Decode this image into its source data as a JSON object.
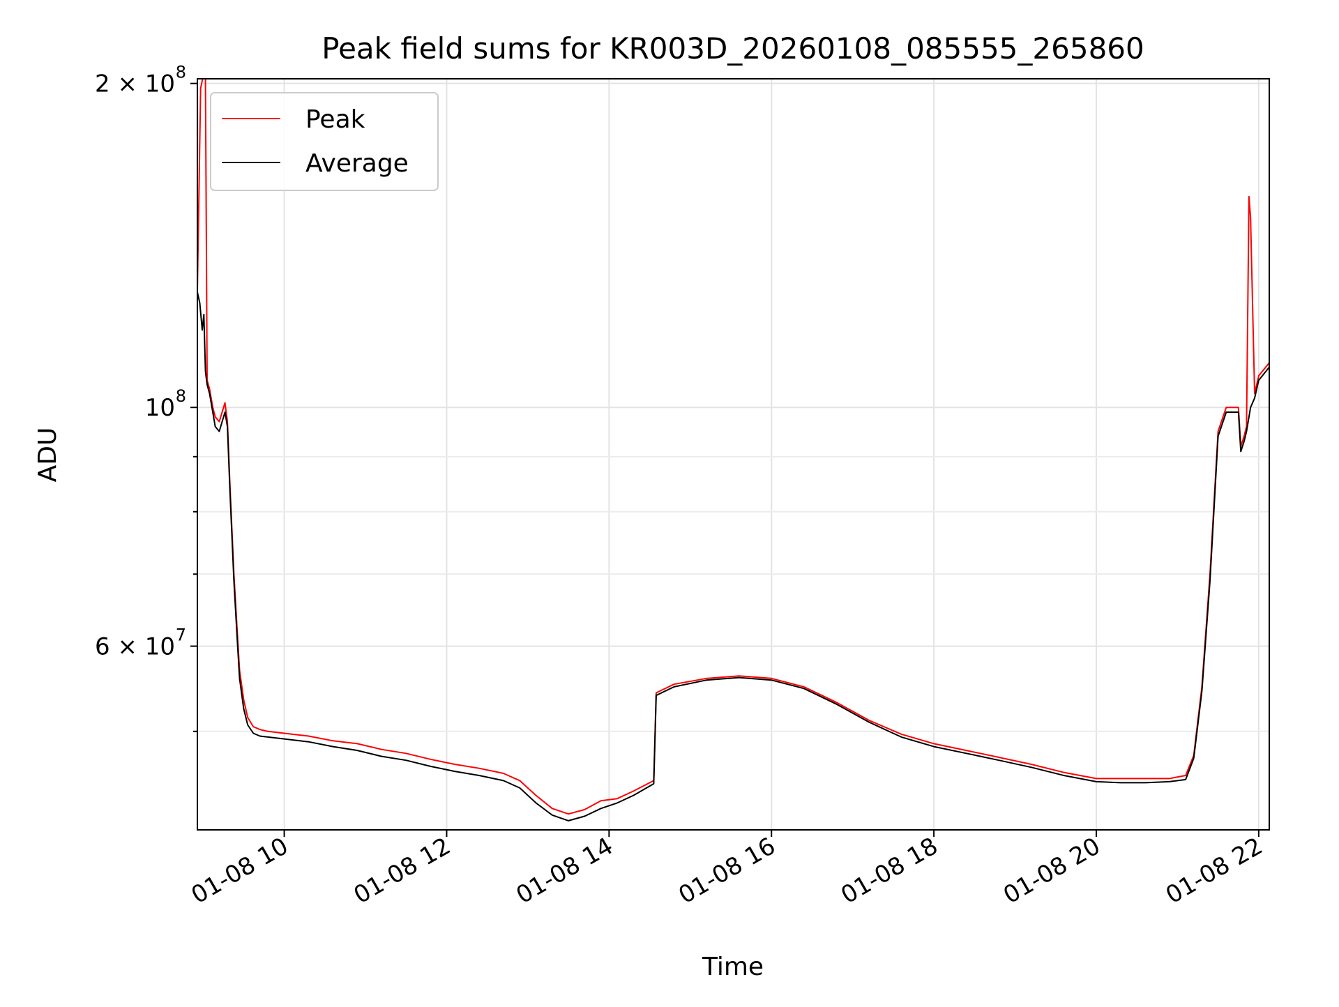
{
  "chart_data": {
    "type": "line",
    "title": "Peak field sums for KR003D_20260108_085555_265860",
    "xlabel": "Time",
    "ylabel": "ADU",
    "yscale": "log",
    "xlim": [
      8.93,
      22.13
    ],
    "ylim": [
      40500000,
      202000000
    ],
    "grid": true,
    "legend_position": "top-left",
    "x_ticks": [
      {
        "value": 10,
        "label": "01-08 10"
      },
      {
        "value": 12,
        "label": "01-08 12"
      },
      {
        "value": 14,
        "label": "01-08 14"
      },
      {
        "value": 16,
        "label": "01-08 16"
      },
      {
        "value": 18,
        "label": "01-08 18"
      },
      {
        "value": 20,
        "label": "01-08 20"
      },
      {
        "value": 22,
        "label": "01-08 22"
      }
    ],
    "y_ticks": [
      {
        "value": 200000000,
        "base": "2 × 10",
        "exp": "8"
      },
      {
        "value": 100000000,
        "base": "10",
        "exp": "8"
      },
      {
        "value": 60000000,
        "base": "6 × 10",
        "exp": "7"
      }
    ],
    "y_minor_ticks": [
      50000000,
      70000000,
      80000000,
      90000000
    ],
    "x_unit": "hour of day (2026-01-08)",
    "y_unit": "ADU",
    "series": [
      {
        "name": "Peak",
        "color": "#ff0000",
        "x": [
          8.93,
          8.97,
          9.0,
          9.03,
          9.05,
          9.08,
          9.1,
          9.12,
          9.15,
          9.2,
          9.27,
          9.3,
          9.33,
          9.38,
          9.42,
          9.45,
          9.5,
          9.55,
          9.62,
          9.7,
          9.8,
          10.0,
          10.3,
          10.6,
          10.9,
          11.2,
          11.5,
          11.8,
          12.1,
          12.4,
          12.7,
          12.9,
          13.1,
          13.3,
          13.5,
          13.7,
          13.9,
          14.1,
          14.3,
          14.55,
          14.58,
          14.8,
          15.2,
          15.6,
          16.0,
          16.4,
          16.8,
          17.2,
          17.6,
          18.0,
          18.4,
          18.8,
          19.2,
          19.6,
          20.0,
          20.3,
          20.6,
          20.9,
          21.1,
          21.2,
          21.3,
          21.4,
          21.5,
          21.6,
          21.65,
          21.75,
          21.78,
          21.82,
          21.85,
          21.88,
          21.9,
          21.95,
          22.0,
          22.13
        ],
        "y": [
          128000000,
          198000000,
          203000000,
          202000000,
          106000000,
          104000000,
          102000000,
          100000000,
          98000000,
          97000000,
          101000000,
          97000000,
          85000000,
          70000000,
          62000000,
          57000000,
          53500000,
          51500000,
          50500000,
          50200000,
          50000000,
          49800000,
          49500000,
          49000000,
          48700000,
          48100000,
          47700000,
          47100000,
          46600000,
          46200000,
          45700000,
          45000000,
          43600000,
          42400000,
          41900000,
          42300000,
          43100000,
          43300000,
          44000000,
          45000000,
          54300000,
          55300000,
          56000000,
          56300000,
          56000000,
          55000000,
          53200000,
          51200000,
          49700000,
          48700000,
          48000000,
          47300000,
          46600000,
          45800000,
          45200000,
          45200000,
          45200000,
          45200000,
          45500000,
          47500000,
          55000000,
          70000000,
          95000000,
          100000000,
          100000000,
          100000000,
          92000000,
          94000000,
          96000000,
          157000000,
          150000000,
          103000000,
          107000000,
          110000000
        ]
      },
      {
        "name": "Average",
        "color": "#000000",
        "x": [
          8.93,
          8.96,
          8.99,
          9.01,
          9.03,
          9.05,
          9.08,
          9.1,
          9.12,
          9.15,
          9.2,
          9.27,
          9.3,
          9.33,
          9.38,
          9.42,
          9.45,
          9.5,
          9.55,
          9.62,
          9.7,
          9.8,
          10.0,
          10.3,
          10.6,
          10.9,
          11.2,
          11.5,
          11.8,
          12.1,
          12.4,
          12.7,
          12.9,
          13.1,
          13.3,
          13.5,
          13.7,
          13.9,
          14.1,
          14.3,
          14.55,
          14.58,
          14.8,
          15.2,
          15.6,
          16.0,
          16.4,
          16.8,
          17.2,
          17.6,
          18.0,
          18.4,
          18.8,
          19.2,
          19.6,
          20.0,
          20.3,
          20.6,
          20.9,
          21.1,
          21.2,
          21.3,
          21.4,
          21.5,
          21.6,
          21.65,
          21.75,
          21.78,
          21.82,
          21.85,
          21.9,
          21.95,
          22.0,
          22.13
        ],
        "y": [
          128000000,
          125000000,
          118000000,
          122000000,
          108000000,
          105000000,
          103000000,
          101000000,
          99000000,
          96000000,
          95000000,
          99000000,
          96000000,
          84000000,
          69000000,
          61000000,
          56000000,
          52500000,
          50700000,
          49800000,
          49500000,
          49400000,
          49200000,
          48900000,
          48400000,
          48000000,
          47400000,
          47000000,
          46400000,
          45900000,
          45500000,
          45000000,
          44300000,
          42900000,
          41800000,
          41300000,
          41700000,
          42400000,
          42900000,
          43600000,
          44700000,
          54000000,
          55000000,
          55800000,
          56100000,
          55800000,
          54800000,
          53000000,
          51000000,
          49400000,
          48400000,
          47700000,
          47000000,
          46300000,
          45500000,
          44900000,
          44800000,
          44800000,
          44900000,
          45100000,
          47200000,
          54500000,
          69000000,
          94000000,
          99000000,
          99000000,
          99000000,
          91000000,
          93000000,
          95000000,
          100000000,
          102000000,
          106000000,
          109000000
        ]
      }
    ]
  }
}
